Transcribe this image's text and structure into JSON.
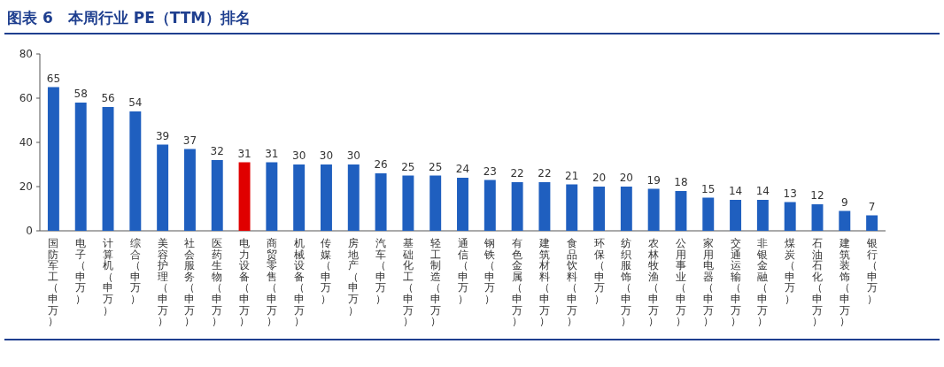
{
  "chart_data": {
    "type": "bar",
    "title": "图表 6　本周行业 PE（TTM）排名",
    "categories": [
      "国防军工（申万）",
      "电子（申万）",
      "计算机（申万）",
      "综合（申万）",
      "美容护理（申万）",
      "社会服务（申万）",
      "医药生物（申万）",
      "电力设备（申万）",
      "商贸零售（申万）",
      "机械设备（申万）",
      "传媒（申万）",
      "房地产（申万）",
      "汽车（申万）",
      "基础化工（申万）",
      "轻工制造（申万）",
      "通信（申万）",
      "钢铁（申万）",
      "有色金属（申万）",
      "建筑材料（申万）",
      "食品饮料（申万）",
      "环保（申万）",
      "纺织服饰（申万）",
      "农林牧渔（申万）",
      "公用事业（申万）",
      "家用电器（申万）",
      "交通运输（申万）",
      "非银金融（申万）",
      "煤炭（申万）",
      "石油石化（申万）",
      "建筑装饰（申万）",
      "银行（申万）"
    ],
    "values": [
      65,
      58,
      56,
      54,
      39,
      37,
      32,
      31,
      31,
      30,
      30,
      30,
      26,
      25,
      25,
      24,
      23,
      22,
      22,
      21,
      20,
      20,
      19,
      18,
      15,
      14,
      14,
      13,
      12,
      9,
      7
    ],
    "colors": [
      "#1f5fbf",
      "#1f5fbf",
      "#1f5fbf",
      "#1f5fbf",
      "#1f5fbf",
      "#1f5fbf",
      "#1f5fbf",
      "#e00000",
      "#1f5fbf",
      "#1f5fbf",
      "#1f5fbf",
      "#1f5fbf",
      "#1f5fbf",
      "#1f5fbf",
      "#1f5fbf",
      "#1f5fbf",
      "#1f5fbf",
      "#1f5fbf",
      "#1f5fbf",
      "#1f5fbf",
      "#1f5fbf",
      "#1f5fbf",
      "#1f5fbf",
      "#1f5fbf",
      "#1f5fbf",
      "#1f5fbf",
      "#1f5fbf",
      "#1f5fbf",
      "#1f5fbf",
      "#1f5fbf",
      "#1f5fbf"
    ],
    "ylim": [
      0,
      80
    ],
    "yticks": [
      0,
      20,
      40,
      60,
      80
    ],
    "data_labels": true,
    "grid": false
  }
}
